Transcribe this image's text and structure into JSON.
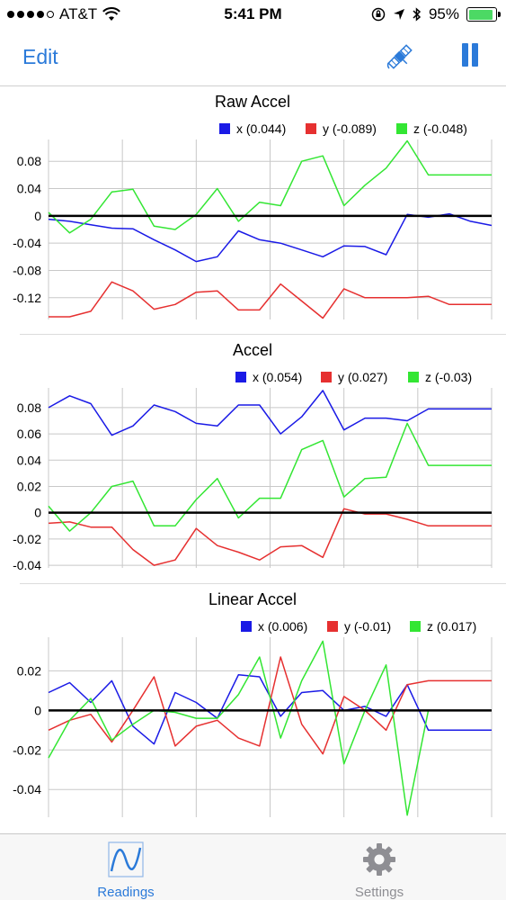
{
  "status_bar": {
    "carrier": "AT&T",
    "time": "5:41 PM",
    "battery": "95%"
  },
  "nav": {
    "edit_label": "Edit"
  },
  "tabs": [
    {
      "label": "Readings",
      "active": true
    },
    {
      "label": "Settings",
      "active": false
    }
  ],
  "colors": {
    "accent": "#2b7ad9",
    "x": "#1a1ae6",
    "y": "#e63030",
    "z": "#33e633"
  },
  "chart_data": [
    {
      "type": "line",
      "title": "Raw Accel",
      "ylim": [
        -0.152,
        0.112
      ],
      "ticks": [
        0.08,
        0.04,
        0,
        -0.04,
        -0.08,
        -0.12
      ],
      "tick_labels": [
        "0.08",
        "0.04",
        "0",
        "-0.04",
        "-0.08",
        "-0.12"
      ],
      "series": [
        {
          "name": "x (0.044)",
          "color": "#1a1ae6",
          "values": [
            -0.005,
            -0.008,
            -0.013,
            -0.018,
            -0.019,
            -0.035,
            -0.05,
            -0.067,
            -0.06,
            -0.022,
            -0.035,
            -0.04,
            -0.05,
            -0.06,
            -0.044,
            -0.045,
            -0.057,
            0.002,
            -0.002,
            0.003,
            -0.008,
            -0.014
          ]
        },
        {
          "name": "y (-0.089)",
          "color": "#e63030",
          "values": [
            -0.148,
            -0.148,
            -0.14,
            -0.097,
            -0.11,
            -0.137,
            -0.13,
            -0.112,
            -0.11,
            -0.138,
            -0.138,
            -0.1,
            -0.125,
            -0.15,
            -0.107,
            -0.12,
            -0.12,
            -0.12,
            -0.118,
            -0.13,
            -0.13,
            -0.13
          ]
        },
        {
          "name": "z (-0.048)",
          "color": "#33e633",
          "values": [
            0.005,
            -0.025,
            -0.005,
            0.035,
            0.039,
            -0.015,
            -0.02,
            0.002,
            0.04,
            -0.008,
            0.02,
            0.015,
            0.08,
            0.088,
            0.015,
            0.045,
            0.07,
            0.11,
            0.06,
            0.06,
            0.06,
            0.06
          ]
        }
      ]
    },
    {
      "type": "line",
      "title": "Accel",
      "ylim": [
        -0.042,
        0.095
      ],
      "ticks": [
        0.08,
        0.06,
        0.04,
        0.02,
        0,
        -0.02,
        -0.04
      ],
      "tick_labels": [
        "0.08",
        "0.06",
        "0.04",
        "0.02",
        "0",
        "-0.02",
        "-0.04"
      ],
      "series": [
        {
          "name": "x (0.054)",
          "color": "#1a1ae6",
          "values": [
            0.08,
            0.089,
            0.083,
            0.059,
            0.066,
            0.082,
            0.077,
            0.068,
            0.066,
            0.082,
            0.082,
            0.06,
            0.073,
            0.093,
            0.063,
            0.072,
            0.072,
            0.07,
            0.079,
            0.079,
            0.079,
            0.079
          ]
        },
        {
          "name": "y (0.027)",
          "color": "#e63030",
          "values": [
            -0.008,
            -0.007,
            -0.011,
            -0.011,
            -0.028,
            -0.04,
            -0.036,
            -0.012,
            -0.025,
            -0.03,
            -0.036,
            -0.026,
            -0.025,
            -0.034,
            0.003,
            -0.001,
            -0.001,
            -0.005,
            -0.01,
            -0.01,
            -0.01,
            -0.01
          ]
        },
        {
          "name": "z (-0.03)",
          "color": "#33e633",
          "values": [
            0.005,
            -0.014,
            0.0,
            0.02,
            0.024,
            -0.01,
            -0.01,
            0.01,
            0.026,
            -0.004,
            0.011,
            0.011,
            0.048,
            0.055,
            0.012,
            0.026,
            0.027,
            0.068,
            0.036,
            0.036,
            0.036,
            0.036
          ]
        }
      ]
    },
    {
      "type": "line",
      "title": "Linear Accel",
      "ylim": [
        -0.054,
        0.037
      ],
      "ticks": [
        0.02,
        0,
        -0.02,
        -0.04
      ],
      "tick_labels": [
        "0.02",
        "0",
        "-0.02",
        "-0.04"
      ],
      "series": [
        {
          "name": "x (0.006)",
          "color": "#1a1ae6",
          "values": [
            0.009,
            0.014,
            0.004,
            0.015,
            -0.008,
            -0.017,
            0.009,
            0.004,
            -0.004,
            0.018,
            0.017,
            -0.003,
            0.009,
            0.01,
            0.0,
            0.002,
            -0.003,
            0.013,
            -0.01,
            -0.01,
            -0.01,
            -0.01
          ]
        },
        {
          "name": "y (-0.01)",
          "color": "#e63030",
          "values": [
            -0.01,
            -0.005,
            -0.002,
            -0.016,
            0.0,
            0.017,
            -0.018,
            -0.008,
            -0.005,
            -0.014,
            -0.018,
            0.027,
            -0.007,
            -0.022,
            0.007,
            0.0,
            -0.01,
            0.013,
            0.015,
            0.015,
            0.015,
            0.015
          ]
        },
        {
          "name": "z (0.017)",
          "color": "#33e633",
          "values": [
            -0.024,
            -0.005,
            0.006,
            -0.015,
            -0.007,
            0.0,
            -0.001,
            -0.004,
            -0.004,
            0.008,
            0.027,
            -0.014,
            0.015,
            0.035,
            -0.027,
            0.0,
            0.023,
            -0.053,
            0.0,
            0.0,
            0.0,
            0.0
          ]
        }
      ]
    }
  ]
}
